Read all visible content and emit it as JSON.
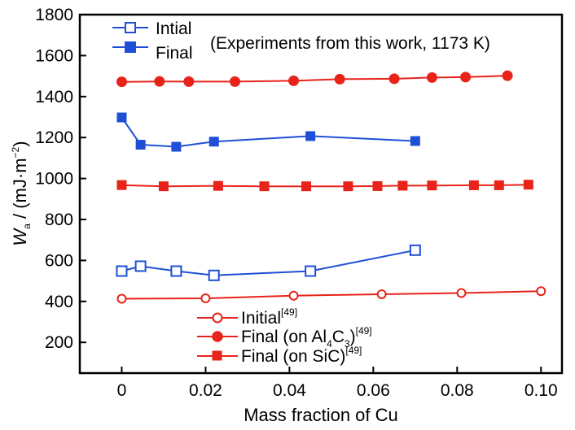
{
  "chart_data": {
    "type": "line",
    "xlabel": "Mass  fraction of Cu",
    "ylabel": {
      "main": "W",
      "sub": "a",
      "rest": " / (mJ·m",
      "sup": "−2",
      "end": ")"
    },
    "xlim": [
      -0.01,
      0.105
    ],
    "ylim": [
      50,
      1800
    ],
    "x_ticks": [
      "0",
      "0.02",
      "0.04",
      "0.06",
      "0.08",
      "0.10"
    ],
    "x_tick_values": [
      0,
      0.02,
      0.04,
      0.06,
      0.08,
      0.1
    ],
    "y_ticks": [
      "200",
      "400",
      "600",
      "800",
      "1000",
      "1200",
      "1400",
      "1600",
      "1800"
    ],
    "y_tick_values": [
      200,
      400,
      600,
      800,
      1000,
      1200,
      1400,
      1600,
      1800
    ],
    "annotation": "(Experiments from this work, 1173 K)",
    "grid": false,
    "series": [
      {
        "id": "intial",
        "name": "Intial",
        "color": "#1f4fd6",
        "marker": "square-open",
        "x": [
          0,
          0.0045,
          0.013,
          0.022,
          0.045,
          0.07
        ],
        "y": [
          548,
          572,
          548,
          527,
          548,
          650
        ]
      },
      {
        "id": "final",
        "name": "Final",
        "color": "#1f4fd6",
        "marker": "square-filled",
        "x": [
          0,
          0.0045,
          0.013,
          0.022,
          0.045,
          0.07
        ],
        "y": [
          1298,
          1165,
          1155,
          1180,
          1207,
          1183
        ]
      },
      {
        "id": "initial49",
        "name": "Initial",
        "ref": "[49]",
        "color": "#e8231a",
        "marker": "circle-open",
        "x": [
          0,
          0.02,
          0.041,
          0.062,
          0.081,
          0.1
        ],
        "y": [
          413,
          415,
          428,
          435,
          441,
          450
        ]
      },
      {
        "id": "final_al4c3",
        "name_parts": [
          "Final (on Al",
          "4",
          "C",
          "3",
          ")"
        ],
        "ref": "[49]",
        "color": "#e8231a",
        "marker": "circle-filled",
        "x": [
          0,
          0.009,
          0.016,
          0.027,
          0.041,
          0.052,
          0.065,
          0.074,
          0.082,
          0.092
        ],
        "y": [
          1472,
          1474,
          1473,
          1473,
          1477,
          1485,
          1487,
          1493,
          1495,
          1502
        ]
      },
      {
        "id": "final_sic",
        "name": "Final (on SiC)",
        "ref": "[49]",
        "color": "#e8231a",
        "marker": "square-filled",
        "x": [
          0,
          0.01,
          0.023,
          0.034,
          0.044,
          0.054,
          0.061,
          0.067,
          0.074,
          0.084,
          0.09,
          0.097
        ],
        "y": [
          968,
          962,
          964,
          962,
          962,
          962,
          963,
          965,
          966,
          967,
          967,
          970
        ]
      }
    ]
  }
}
